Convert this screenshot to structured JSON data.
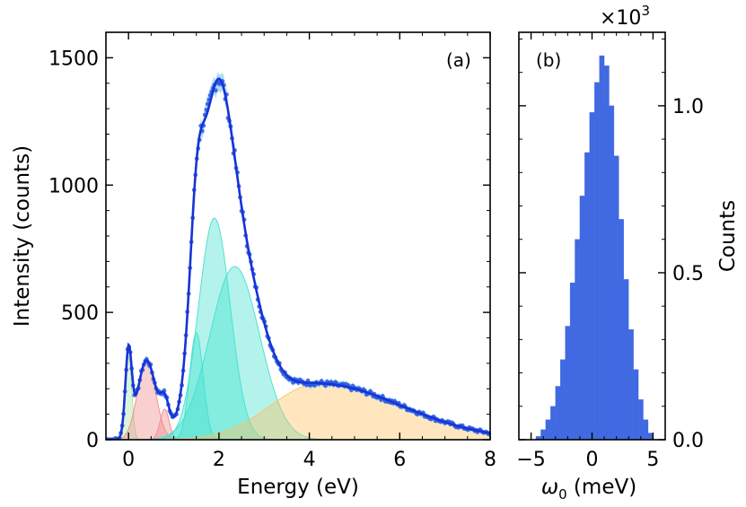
{
  "colors": {
    "fit_line": "#1733d6",
    "data_points": "#2a57e0",
    "data_band": "#8fd3ee",
    "green_peak": "#a8e6a0",
    "red_peak": "#f08a8a",
    "teal_peak": "#40e0d0",
    "orange_peak": "#ffc060",
    "histogram": "#4169e1"
  },
  "chart_data": [
    {
      "type": "line",
      "panel_label": "(a)",
      "xlabel": "Energy (eV)",
      "ylabel": "Intensity (counts)",
      "xlim": [
        -0.5,
        8
      ],
      "ylim": [
        0,
        1600
      ],
      "xticks": [
        0,
        2,
        4,
        6,
        8
      ],
      "xtick_labels": [
        "0",
        "2",
        "4",
        "6",
        "8"
      ],
      "yticks": [
        0,
        500,
        1000,
        1500
      ],
      "ytick_labels": [
        "0",
        "500",
        "1000",
        "1500"
      ],
      "grid": false,
      "components": [
        {
          "id": "zero-loss",
          "shape": "gaussian",
          "center": 0.0,
          "amplitude": 330,
          "sigma": 0.07,
          "color_key": "green_peak"
        },
        {
          "id": "low-energy-1",
          "shape": "gaussian",
          "center": 0.4,
          "amplitude": 310,
          "sigma": 0.2,
          "color_key": "red_peak"
        },
        {
          "id": "low-energy-2",
          "shape": "gaussian",
          "center": 0.8,
          "amplitude": 120,
          "sigma": 0.1,
          "color_key": "red_peak"
        },
        {
          "id": "interband-1",
          "shape": "gaussian",
          "center": 1.5,
          "amplitude": 420,
          "sigma": 0.15,
          "color_key": "teal_peak"
        },
        {
          "id": "interband-2",
          "shape": "gaussian",
          "center": 1.9,
          "amplitude": 870,
          "sigma": 0.35,
          "color_key": "teal_peak"
        },
        {
          "id": "interband-3",
          "shape": "gaussian",
          "center": 2.35,
          "amplitude": 680,
          "sigma": 0.55,
          "color_key": "teal_peak"
        },
        {
          "id": "background",
          "shape": "broad",
          "center": 4.2,
          "amplitude": 220,
          "sigma_left": 1.5,
          "sigma_right": 2.6,
          "color_key": "orange_peak"
        }
      ],
      "series": [
        {
          "kind": "measured",
          "x_start": -0.5,
          "x_end": 8.0,
          "x_step": 0.03
        },
        {
          "kind": "fit",
          "x_start": -0.5,
          "x_end": 8.0,
          "x_step": 0.02
        }
      ]
    },
    {
      "type": "bar",
      "panel_label": "(b)",
      "xlabel": "ω",
      "xlabel_sub": "0",
      "xlabel_unit": " (meV)",
      "ylabel": "Counts",
      "y_multiplier": "×10",
      "y_multiplier_exp": "3",
      "xlim": [
        -6,
        6
      ],
      "ylim": [
        0,
        1.22
      ],
      "xticks": [
        -5,
        0,
        5
      ],
      "xtick_labels": [
        "−5",
        "0",
        "5"
      ],
      "yticks": [
        0,
        0.5,
        1.0
      ],
      "ytick_labels": [
        "0.0",
        "0.5",
        "1.0"
      ],
      "grid": false,
      "bin_width": 0.4,
      "bin_centers": [
        -4.4,
        -4.0,
        -3.6,
        -3.2,
        -2.8,
        -2.4,
        -2.0,
        -1.6,
        -1.2,
        -0.8,
        -0.4,
        0.0,
        0.4,
        0.8,
        1.2,
        1.6,
        2.0,
        2.4,
        2.8,
        3.2,
        3.6,
        4.0,
        4.4,
        4.8
      ],
      "values": [
        0.01,
        0.03,
        0.06,
        0.1,
        0.16,
        0.24,
        0.34,
        0.47,
        0.6,
        0.73,
        0.86,
        0.98,
        1.07,
        1.15,
        1.12,
        1.0,
        0.85,
        0.66,
        0.48,
        0.33,
        0.21,
        0.12,
        0.06,
        0.02
      ],
      "values_order_note": "",
      "extra_bins": []
    }
  ]
}
